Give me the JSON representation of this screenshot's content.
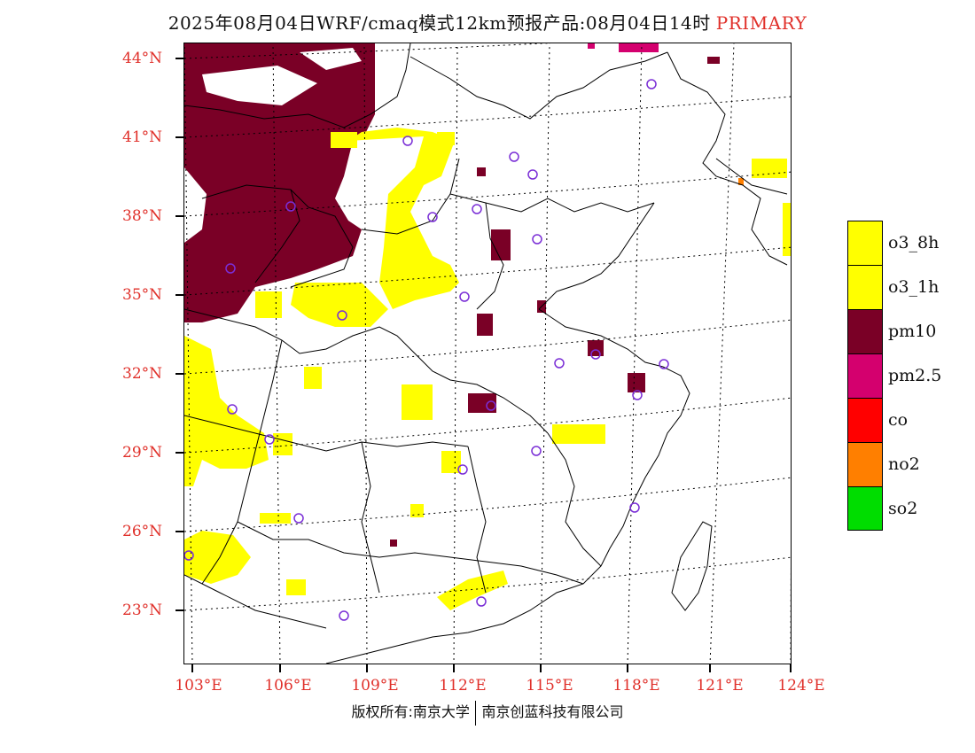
{
  "header": {
    "title": "2025年08月04日WRF/cmaq模式12km预报产品:08月04日14时",
    "tag": "PRIMARY"
  },
  "axes": {
    "lat_labels": [
      "44°N",
      "41°N",
      "38°N",
      "35°N",
      "32°N",
      "29°N",
      "26°N",
      "23°N"
    ],
    "lon_labels": [
      "103°E",
      "106°E",
      "109°E",
      "112°E",
      "115°E",
      "118°E",
      "121°E",
      "124°E"
    ]
  },
  "legend": {
    "items": [
      {
        "label": "o3_8h",
        "color": "#ffff00"
      },
      {
        "label": "o3_1h",
        "color": "#ffff00"
      },
      {
        "label": "pm10",
        "color": "#7a0026"
      },
      {
        "label": "pm2.5",
        "color": "#d4006e"
      },
      {
        "label": "co",
        "color": "#ff0000"
      },
      {
        "label": "no2",
        "color": "#ff7f00"
      },
      {
        "label": "so2",
        "color": "#00dd00"
      }
    ]
  },
  "footer": {
    "left": "版权所有:南京大学",
    "right": "南京创蓝科技有限公司"
  }
}
